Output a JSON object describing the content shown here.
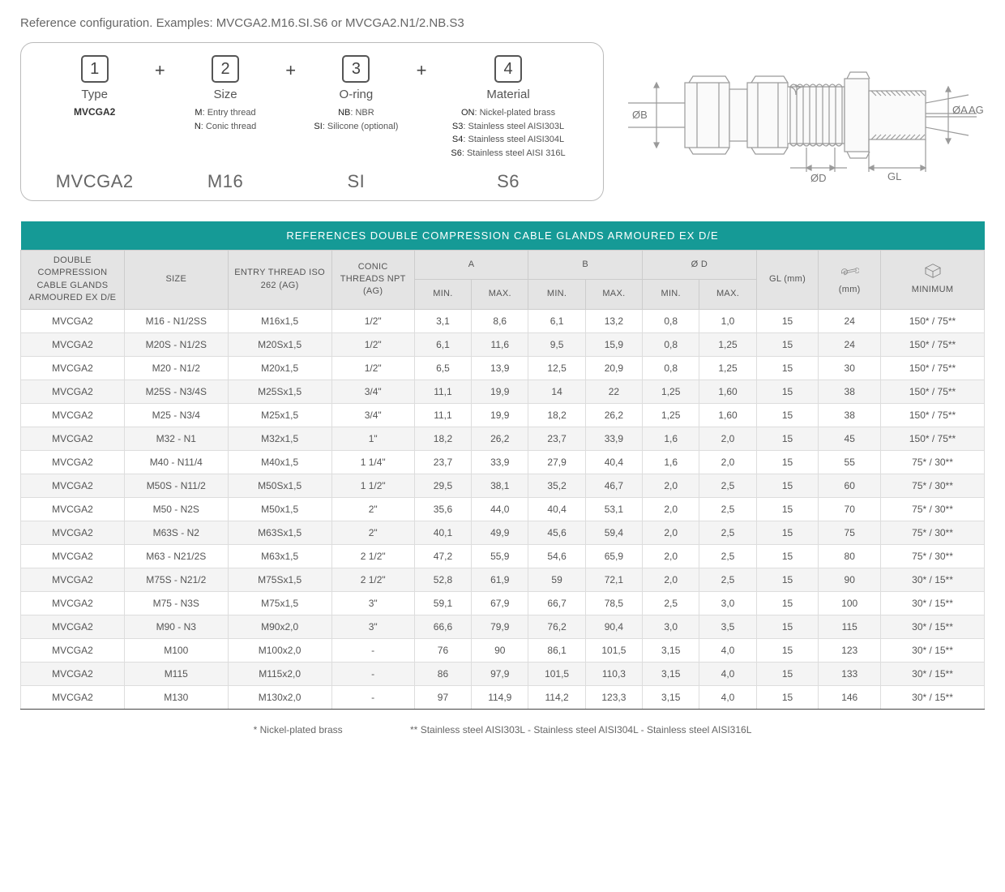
{
  "header": {
    "reference_line": "Reference configuration. Examples: MVCGA2.M16.SI.S6 or MVCGA2.N1/2.NB.S3"
  },
  "config": {
    "columns": [
      {
        "num": "1",
        "title": "Type",
        "code": "MVCGA2",
        "desc_html": "",
        "example": "MVCGA2"
      },
      {
        "num": "2",
        "title": "Size",
        "code": "",
        "desc_html": "<b>M</b>: Entry thread<br><b>N</b>: Conic thread",
        "example": "M16"
      },
      {
        "num": "3",
        "title": "O-ring",
        "code": "",
        "desc_html": "<b>NB</b>: NBR<br><b>SI</b>: Silicone (optional)",
        "example": "SI"
      },
      {
        "num": "4",
        "title": "Material",
        "code": "",
        "desc_html": "<b>ON</b>: Nickel-plated brass<br><b>S3</b>: Stainless steel AISI303L<br><b>S4</b>: Stainless steel AISI304L<br><b>S6</b>: Stainless steel AISI 316L",
        "example": "S6"
      }
    ]
  },
  "diagram": {
    "labels": {
      "ob": "ØB",
      "od": "ØD",
      "gl": "GL",
      "oa": "ØA",
      "ag": "AG"
    },
    "stroke": "#9a9a9a",
    "fill_light": "#f5f5f5"
  },
  "table": {
    "banner": "REFERENCES DOUBLE COMPRESSION CABLE GLANDS ARMOURED EX D/E",
    "head_top": [
      "DOUBLE COMPRESSION CABLE GLANDS ARMOURED EX D/E",
      "SIZE",
      "ENTRY THREAD ISO 262 (AG)",
      "CONIC THREADS NPT (AG)",
      "A",
      "B",
      "Ø D",
      "GL (mm)",
      "(mm)",
      "MINIMUM"
    ],
    "sub": [
      "MIN.",
      "MAX.",
      "MIN.",
      "MAX.",
      "MIN.",
      "MAX."
    ],
    "rows": [
      [
        "MVCGA2",
        "M16 - N1/2SS",
        "M16x1,5",
        "1/2\"",
        "3,1",
        "8,6",
        "6,1",
        "13,2",
        "0,8",
        "1,0",
        "15",
        "24",
        "150* / 75**"
      ],
      [
        "MVCGA2",
        "M20S - N1/2S",
        "M20Sx1,5",
        "1/2\"",
        "6,1",
        "11,6",
        "9,5",
        "15,9",
        "0,8",
        "1,25",
        "15",
        "24",
        "150* / 75**"
      ],
      [
        "MVCGA2",
        "M20 - N1/2",
        "M20x1,5",
        "1/2\"",
        "6,5",
        "13,9",
        "12,5",
        "20,9",
        "0,8",
        "1,25",
        "15",
        "30",
        "150* / 75**"
      ],
      [
        "MVCGA2",
        "M25S - N3/4S",
        "M25Sx1,5",
        "3/4\"",
        "11,1",
        "19,9",
        "14",
        "22",
        "1,25",
        "1,60",
        "15",
        "38",
        "150* / 75**"
      ],
      [
        "MVCGA2",
        "M25 - N3/4",
        "M25x1,5",
        "3/4\"",
        "11,1",
        "19,9",
        "18,2",
        "26,2",
        "1,25",
        "1,60",
        "15",
        "38",
        "150* / 75**"
      ],
      [
        "MVCGA2",
        "M32 - N1",
        "M32x1,5",
        "1\"",
        "18,2",
        "26,2",
        "23,7",
        "33,9",
        "1,6",
        "2,0",
        "15",
        "45",
        "150* / 75**"
      ],
      [
        "MVCGA2",
        "M40 - N11/4",
        "M40x1,5",
        "1 1/4\"",
        "23,7",
        "33,9",
        "27,9",
        "40,4",
        "1,6",
        "2,0",
        "15",
        "55",
        "75* / 30**"
      ],
      [
        "MVCGA2",
        "M50S - N11/2",
        "M50Sx1,5",
        "1 1/2\"",
        "29,5",
        "38,1",
        "35,2",
        "46,7",
        "2,0",
        "2,5",
        "15",
        "60",
        "75* / 30**"
      ],
      [
        "MVCGA2",
        "M50 - N2S",
        "M50x1,5",
        "2\"",
        "35,6",
        "44,0",
        "40,4",
        "53,1",
        "2,0",
        "2,5",
        "15",
        "70",
        "75* / 30**"
      ],
      [
        "MVCGA2",
        "M63S - N2",
        "M63Sx1,5",
        "2\"",
        "40,1",
        "49,9",
        "45,6",
        "59,4",
        "2,0",
        "2,5",
        "15",
        "75",
        "75* / 30**"
      ],
      [
        "MVCGA2",
        "M63 - N21/2S",
        "M63x1,5",
        "2 1/2\"",
        "47,2",
        "55,9",
        "54,6",
        "65,9",
        "2,0",
        "2,5",
        "15",
        "80",
        "75* / 30**"
      ],
      [
        "MVCGA2",
        "M75S - N21/2",
        "M75Sx1,5",
        "2 1/2\"",
        "52,8",
        "61,9",
        "59",
        "72,1",
        "2,0",
        "2,5",
        "15",
        "90",
        "30* / 15**"
      ],
      [
        "MVCGA2",
        "M75 - N3S",
        "M75x1,5",
        "3\"",
        "59,1",
        "67,9",
        "66,7",
        "78,5",
        "2,5",
        "3,0",
        "15",
        "100",
        "30* / 15**"
      ],
      [
        "MVCGA2",
        "M90 - N3",
        "M90x2,0",
        "3\"",
        "66,6",
        "79,9",
        "76,2",
        "90,4",
        "3,0",
        "3,5",
        "15",
        "115",
        "30* / 15**"
      ],
      [
        "MVCGA2",
        "M100",
        "M100x2,0",
        "-",
        "76",
        "90",
        "86,1",
        "101,5",
        "3,15",
        "4,0",
        "15",
        "123",
        "30* / 15**"
      ],
      [
        "MVCGA2",
        "M115",
        "M115x2,0",
        "-",
        "86",
        "97,9",
        "101,5",
        "110,3",
        "3,15",
        "4,0",
        "15",
        "133",
        "30* / 15**"
      ],
      [
        "MVCGA2",
        "M130",
        "M130x2,0",
        "-",
        "97",
        "114,9",
        "114,2",
        "123,3",
        "3,15",
        "4,0",
        "15",
        "146",
        "30* / 15**"
      ]
    ]
  },
  "footnotes": {
    "a": "* Nickel-plated brass",
    "b": "** Stainless steel AISI303L - Stainless steel AISI304L - Stainless steel AISI316L"
  },
  "colors": {
    "teal": "#159a96",
    "grey_header": "#e4e4e4",
    "row_alt": "#f4f4f4",
    "border": "#dddddd",
    "text": "#555555"
  }
}
